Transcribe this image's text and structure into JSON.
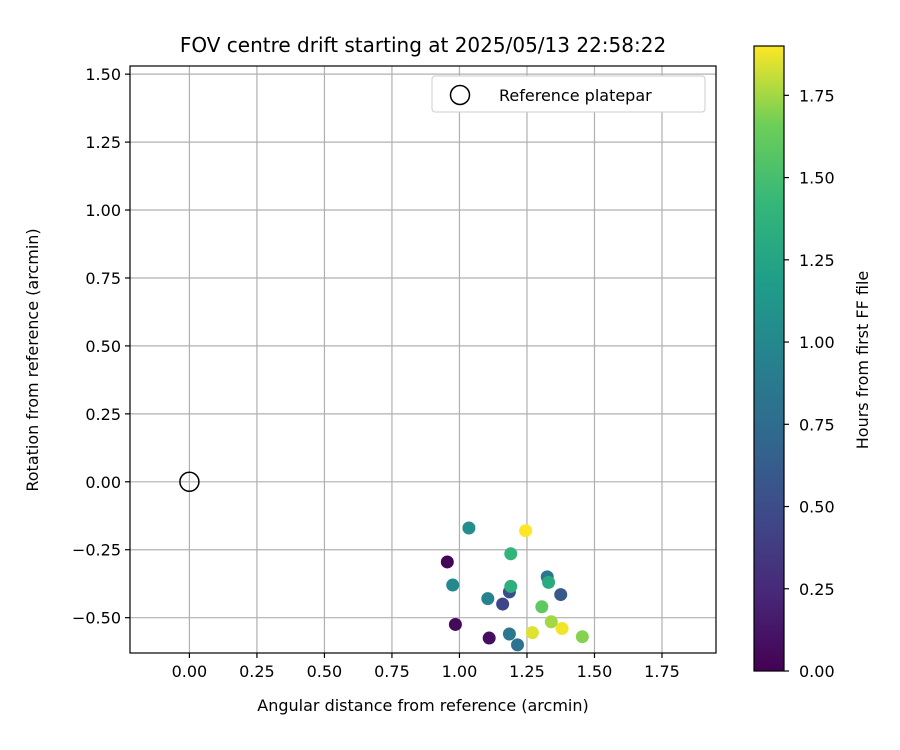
{
  "chart_data": {
    "type": "scatter",
    "title": "FOV centre drift starting at 2025/05/13 22:58:22",
    "xlabel": "Angular distance from reference (arcmin)",
    "ylabel": "Rotation from reference (arcmin)",
    "xlim": [
      -0.22,
      1.95
    ],
    "ylim": [
      -0.63,
      1.53
    ],
    "xticks": [
      "0.00",
      "0.25",
      "0.50",
      "0.75",
      "1.00",
      "1.25",
      "1.50",
      "1.75"
    ],
    "xtick_values": [
      0,
      0.25,
      0.5,
      0.75,
      1.0,
      1.25,
      1.5,
      1.75
    ],
    "yticks": [
      "1.50",
      "1.25",
      "1.00",
      "0.75",
      "0.50",
      "0.25",
      "0.00",
      "−0.25",
      "−0.50"
    ],
    "ytick_values": [
      1.5,
      1.25,
      1.0,
      0.75,
      0.5,
      0.25,
      0.0,
      -0.25,
      -0.5
    ],
    "grid": true,
    "legend": {
      "position": "top-right",
      "entries": [
        "Reference platepar"
      ]
    },
    "reference_point": {
      "x": 0.0,
      "y": 0.0,
      "label": "Reference platepar"
    },
    "colorbar": {
      "label": "Hours from first FF file",
      "range": [
        0,
        1.9
      ],
      "ticks": [
        "0.00",
        "0.25",
        "0.50",
        "0.75",
        "1.00",
        "1.25",
        "1.50",
        "1.75"
      ],
      "tick_values": [
        0,
        0.25,
        0.5,
        0.75,
        1.0,
        1.25,
        1.5,
        1.75
      ],
      "colormap": "viridis"
    },
    "points": [
      {
        "x": 0.955,
        "y": -0.295,
        "hours": 0.02
      },
      {
        "x": 0.985,
        "y": -0.525,
        "hours": 0.05
      },
      {
        "x": 1.11,
        "y": -0.575,
        "hours": 0.08
      },
      {
        "x": 1.16,
        "y": -0.45,
        "hours": 0.45
      },
      {
        "x": 1.185,
        "y": -0.405,
        "hours": 0.5
      },
      {
        "x": 1.375,
        "y": -0.415,
        "hours": 0.6
      },
      {
        "x": 1.215,
        "y": -0.6,
        "hours": 0.8
      },
      {
        "x": 1.185,
        "y": -0.56,
        "hours": 0.85
      },
      {
        "x": 1.325,
        "y": -0.35,
        "hours": 0.85
      },
      {
        "x": 1.105,
        "y": -0.43,
        "hours": 0.95
      },
      {
        "x": 0.975,
        "y": -0.38,
        "hours": 1.0
      },
      {
        "x": 1.035,
        "y": -0.17,
        "hours": 1.05
      },
      {
        "x": 1.33,
        "y": -0.37,
        "hours": 1.3
      },
      {
        "x": 1.19,
        "y": -0.385,
        "hours": 1.35
      },
      {
        "x": 1.19,
        "y": -0.265,
        "hours": 1.4
      },
      {
        "x": 1.305,
        "y": -0.46,
        "hours": 1.6
      },
      {
        "x": 1.455,
        "y": -0.57,
        "hours": 1.7
      },
      {
        "x": 1.34,
        "y": -0.515,
        "hours": 1.75
      },
      {
        "x": 1.27,
        "y": -0.555,
        "hours": 1.85
      },
      {
        "x": 1.38,
        "y": -0.54,
        "hours": 1.88
      },
      {
        "x": 1.245,
        "y": -0.18,
        "hours": 1.9
      }
    ]
  }
}
